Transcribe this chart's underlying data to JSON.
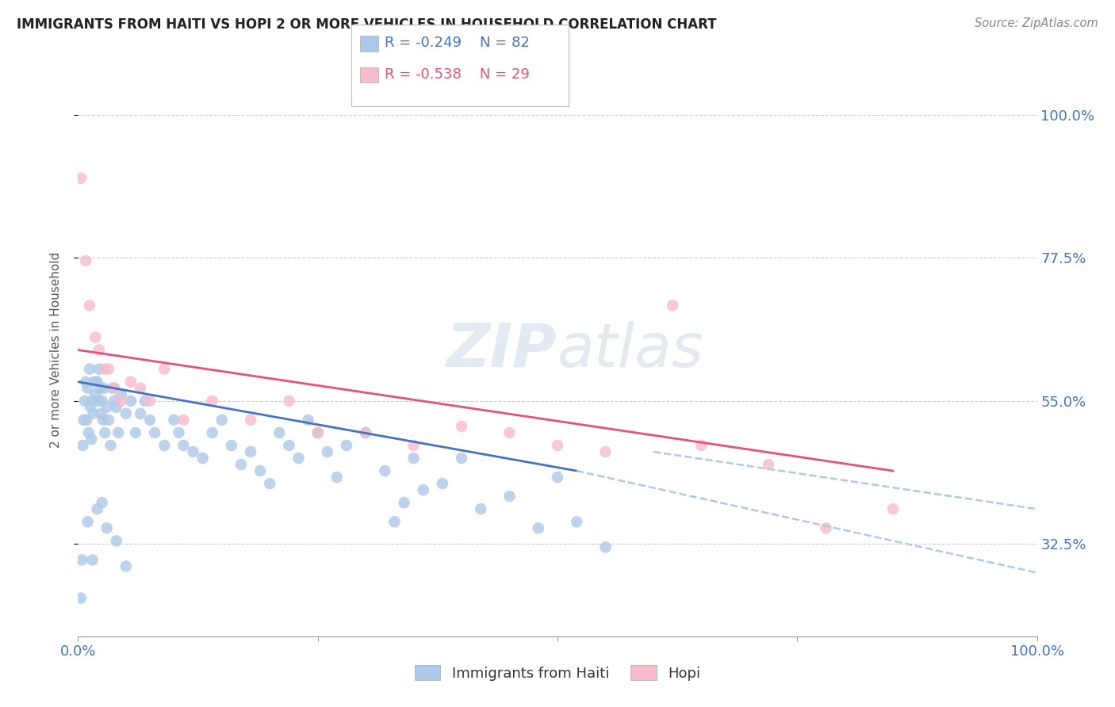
{
  "title": "IMMIGRANTS FROM HAITI VS HOPI 2 OR MORE VEHICLES IN HOUSEHOLD CORRELATION CHART",
  "source": "Source: ZipAtlas.com",
  "ylabel": "2 or more Vehicles in Household",
  "xlim": [
    0.0,
    100.0
  ],
  "ylim": [
    18.0,
    108.0
  ],
  "yticks": [
    32.5,
    55.0,
    77.5,
    100.0
  ],
  "xtick_labels": [
    "0.0%",
    "100.0%"
  ],
  "ytick_labels": [
    "32.5%",
    "55.0%",
    "77.5%",
    "100.0%"
  ],
  "legend_blue_r": "R = -0.249",
  "legend_blue_n": "N = 82",
  "legend_pink_r": "R = -0.538",
  "legend_pink_n": "N = 29",
  "blue_color": "#adc8e8",
  "pink_color": "#f5bccb",
  "blue_line_color": "#4472c4",
  "pink_line_color": "#e8507a",
  "dashed_line_color": "#adc8e8",
  "watermark_color": "#dce8f0",
  "blue_scatter_x": [
    0.3,
    0.4,
    0.5,
    0.6,
    0.7,
    0.8,
    0.9,
    1.0,
    1.1,
    1.2,
    1.3,
    1.4,
    1.5,
    1.6,
    1.7,
    1.8,
    2.0,
    2.1,
    2.2,
    2.3,
    2.4,
    2.5,
    2.6,
    2.7,
    2.8,
    3.0,
    3.2,
    3.4,
    3.6,
    3.8,
    4.0,
    4.2,
    4.5,
    5.0,
    5.5,
    6.0,
    6.5,
    7.0,
    7.5,
    8.0,
    9.0,
    10.0,
    10.5,
    11.0,
    12.0,
    13.0,
    14.0,
    15.0,
    16.0,
    17.0,
    18.0,
    19.0,
    20.0,
    21.0,
    22.0,
    23.0,
    24.0,
    25.0,
    26.0,
    27.0,
    28.0,
    30.0,
    32.0,
    33.0,
    34.0,
    35.0,
    36.0,
    38.0,
    40.0,
    42.0,
    45.0,
    48.0,
    50.0,
    52.0,
    55.0,
    1.0,
    1.5,
    2.0,
    2.5,
    3.0,
    4.0,
    5.0
  ],
  "blue_scatter_y": [
    24.0,
    30.0,
    48.0,
    52.0,
    55.0,
    58.0,
    52.0,
    57.0,
    50.0,
    60.0,
    54.0,
    49.0,
    55.0,
    53.0,
    58.0,
    56.0,
    58.0,
    55.0,
    60.0,
    57.0,
    53.0,
    55.0,
    52.0,
    57.0,
    50.0,
    54.0,
    52.0,
    48.0,
    57.0,
    55.0,
    54.0,
    50.0,
    56.0,
    53.0,
    55.0,
    50.0,
    53.0,
    55.0,
    52.0,
    50.0,
    48.0,
    52.0,
    50.0,
    48.0,
    47.0,
    46.0,
    50.0,
    52.0,
    48.0,
    45.0,
    47.0,
    44.0,
    42.0,
    50.0,
    48.0,
    46.0,
    52.0,
    50.0,
    47.0,
    43.0,
    48.0,
    50.0,
    44.0,
    36.0,
    39.0,
    46.0,
    41.0,
    42.0,
    46.0,
    38.0,
    40.0,
    35.0,
    43.0,
    36.0,
    32.0,
    36.0,
    30.0,
    38.0,
    39.0,
    35.0,
    33.0,
    29.0
  ],
  "pink_scatter_x": [
    0.3,
    0.8,
    1.2,
    1.8,
    2.2,
    2.8,
    3.2,
    3.8,
    4.5,
    5.5,
    6.5,
    7.5,
    9.0,
    11.0,
    14.0,
    18.0,
    22.0,
    25.0,
    30.0,
    35.0,
    40.0,
    45.0,
    50.0,
    55.0,
    62.0,
    65.0,
    72.0,
    78.0,
    85.0
  ],
  "pink_scatter_y": [
    90.0,
    77.0,
    70.0,
    65.0,
    63.0,
    60.0,
    60.0,
    57.0,
    55.0,
    58.0,
    57.0,
    55.0,
    60.0,
    52.0,
    55.0,
    52.0,
    55.0,
    50.0,
    50.0,
    48.0,
    51.0,
    50.0,
    48.0,
    47.0,
    70.0,
    48.0,
    45.0,
    35.0,
    38.0
  ],
  "blue_line_x0": 0.0,
  "blue_line_y0": 58.0,
  "blue_line_x1": 52.0,
  "blue_line_y1": 44.0,
  "blue_dash_x0": 52.0,
  "blue_dash_y0": 44.0,
  "blue_dash_x1": 100.0,
  "blue_dash_y1": 28.0,
  "pink_line_x0": 0.0,
  "pink_line_y0": 63.0,
  "pink_line_x1": 85.0,
  "pink_line_y1": 44.0,
  "pink_dash_x0": 60.0,
  "pink_dash_y0": 47.0,
  "pink_dash_x1": 100.0,
  "pink_dash_y1": 38.0
}
